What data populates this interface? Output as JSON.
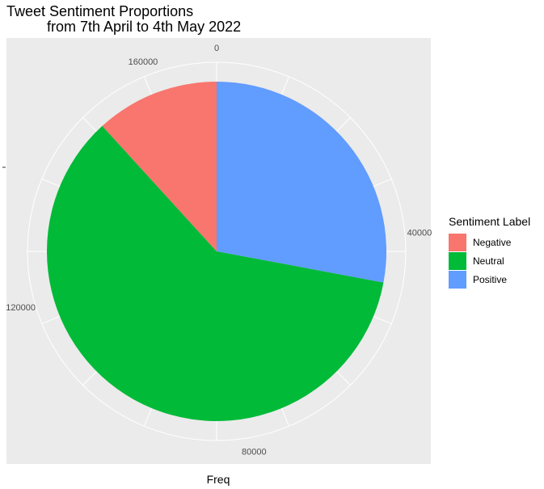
{
  "chart_data": {
    "type": "pie",
    "title": "Tweet Sentiment Proportions",
    "subtitle": "from 7th April to 4th May 2022",
    "xlabel": "Freq",
    "ylabel": "",
    "total": 170000,
    "ticks": [
      {
        "value": 0,
        "label": "0"
      },
      {
        "value": 40000,
        "label": "40000"
      },
      {
        "value": 80000,
        "label": "80000"
      },
      {
        "value": 120000,
        "label": "120000"
      },
      {
        "value": 160000,
        "label": "160000"
      }
    ],
    "slices": [
      {
        "label": "Positive",
        "value": 47500,
        "color": "#619CFF"
      },
      {
        "label": "Neutral",
        "value": 102500,
        "color": "#00BA38"
      },
      {
        "label": "Negative",
        "value": 20000,
        "color": "#F8766D"
      }
    ],
    "legend": {
      "title": "Sentiment Label",
      "position": "right",
      "items": [
        {
          "label": "Negative",
          "color": "#F8766D"
        },
        {
          "label": "Neutral",
          "color": "#00BA38"
        },
        {
          "label": "Positive",
          "color": "#619CFF"
        }
      ]
    },
    "panel_background": "#EBEBEB",
    "grid": true,
    "grid_color": "#FFFFFF"
  }
}
